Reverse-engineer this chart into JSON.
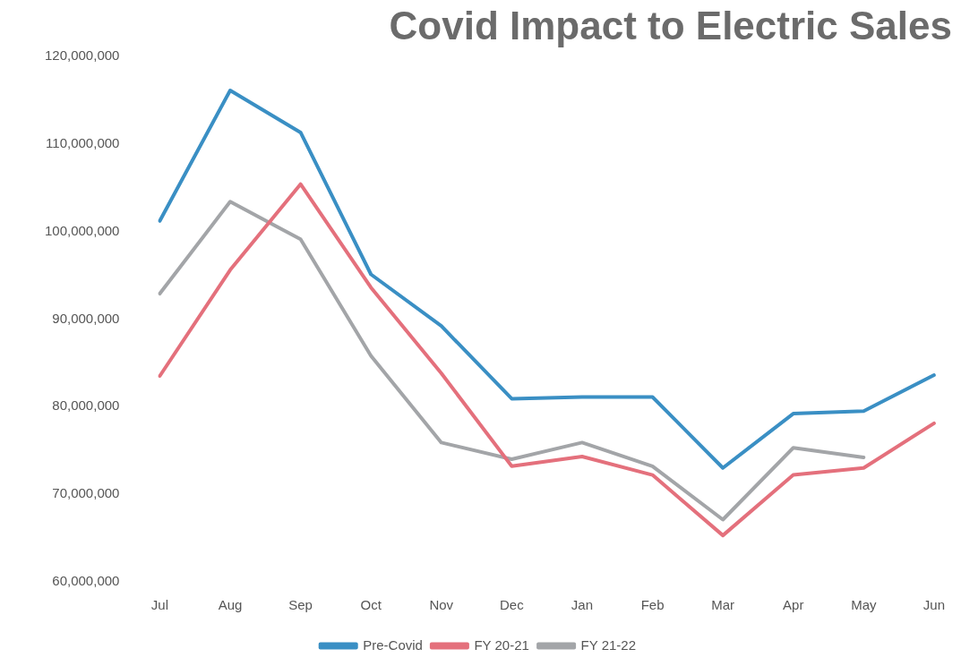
{
  "chart_data": {
    "type": "line",
    "title": "Covid Impact to Electric Sales",
    "categories": [
      "Jul",
      "Aug",
      "Sep",
      "Oct",
      "Nov",
      "Dec",
      "Jan",
      "Feb",
      "Mar",
      "Apr",
      "May",
      "Jun"
    ],
    "series": [
      {
        "name": "Pre-Covid",
        "color": "#3a8fc4",
        "values": [
          101200000,
          116100000,
          111300000,
          95100000,
          89200000,
          80900000,
          81100000,
          81100000,
          73000000,
          79200000,
          79500000,
          83600000
        ]
      },
      {
        "name": "FY 20-21",
        "color": "#e4707c",
        "values": [
          83500000,
          95600000,
          105400000,
          93600000,
          83800000,
          73200000,
          74300000,
          72200000,
          65300000,
          72200000,
          73000000,
          78100000
        ]
      },
      {
        "name": "FY 21-22",
        "color": "#a3a5a8",
        "values": [
          92900000,
          103400000,
          99100000,
          85800000,
          75900000,
          74000000,
          75900000,
          73200000,
          67100000,
          75300000,
          74200000,
          null
        ]
      }
    ],
    "ylim": [
      60000000,
      120000000
    ],
    "yticks": [
      {
        "value": 60000000,
        "label": "60,000,000"
      },
      {
        "value": 70000000,
        "label": "70,000,000"
      },
      {
        "value": 80000000,
        "label": "80,000,000"
      },
      {
        "value": 90000000,
        "label": "90,000,000"
      },
      {
        "value": 100000000,
        "label": "100,000,000"
      },
      {
        "value": 110000000,
        "label": "110,000,000"
      },
      {
        "value": 120000000,
        "label": "120,000,000"
      }
    ],
    "grid": false,
    "legend": "bottom",
    "marker": "none",
    "line_style": "solid"
  }
}
